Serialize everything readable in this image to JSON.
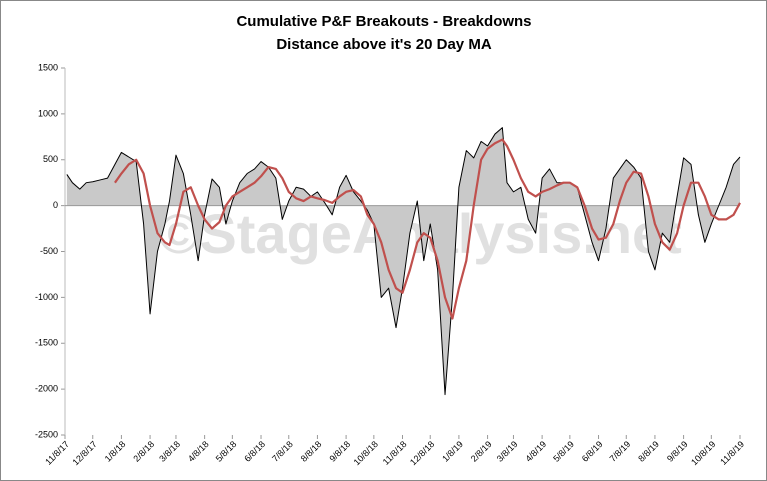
{
  "chart_data": {
    "type": "line",
    "title": "Cumulative P&F Breakouts - Breakdowns",
    "subtitle": "Distance above it's 20 Day MA",
    "watermark": "©StageAnalysis.net",
    "x": [
      "11/10/17",
      "11/16/17",
      "11/24/17",
      "12/1/17",
      "12/8/17",
      "12/16/17",
      "12/24/17",
      "1/1/18",
      "1/8/18",
      "1/16/18",
      "1/24/18",
      "2/1/18",
      "2/8/18",
      "2/16/18",
      "2/24/18",
      "3/1/18",
      "3/8/18",
      "3/16/18",
      "3/24/18",
      "4/1/18",
      "4/8/18",
      "4/16/18",
      "4/24/18",
      "5/1/18",
      "5/8/18",
      "5/16/18",
      "5/24/18",
      "6/1/18",
      "6/8/18",
      "6/16/18",
      "6/24/18",
      "7/1/18",
      "7/8/18",
      "7/16/18",
      "7/24/18",
      "8/1/18",
      "8/8/18",
      "8/16/18",
      "8/24/18",
      "9/1/18",
      "9/8/18",
      "9/16/18",
      "9/24/18",
      "10/1/18",
      "10/8/18",
      "10/16/18",
      "10/24/18",
      "11/1/18",
      "11/8/18",
      "11/16/18",
      "11/24/18",
      "12/1/18",
      "12/8/18",
      "12/16/18",
      "12/24/18",
      "1/1/19",
      "1/8/19",
      "1/16/19",
      "1/24/19",
      "2/1/19",
      "2/8/19",
      "2/16/19",
      "2/24/19",
      "3/1/19",
      "3/8/19",
      "3/16/19",
      "3/24/19",
      "4/1/19",
      "4/8/19",
      "4/16/19",
      "4/24/19",
      "5/1/19",
      "5/8/19",
      "5/16/19",
      "5/24/19",
      "6/1/19",
      "6/8/19",
      "6/16/19",
      "6/24/19",
      "7/1/19",
      "7/8/19",
      "7/16/19",
      "7/24/19",
      "8/1/19",
      "8/8/19",
      "8/16/19",
      "8/24/19",
      "9/1/19",
      "9/8/19",
      "9/16/19",
      "9/24/19",
      "10/1/19",
      "10/8/19",
      "10/16/19",
      "10/24/19",
      "11/1/19",
      "11/8/19"
    ],
    "series": [
      {
        "name": "Breakouts - Breakdowns",
        "color": "#000000",
        "fill": "#c9c9c9",
        "values": [
          340,
          250,
          180,
          250,
          260,
          280,
          300,
          450,
          580,
          530,
          480,
          -200,
          -1180,
          -500,
          -200,
          50,
          550,
          350,
          -100,
          -600,
          -100,
          290,
          200,
          -200,
          50,
          250,
          350,
          400,
          480,
          420,
          300,
          -150,
          50,
          200,
          180,
          100,
          150,
          30,
          -100,
          200,
          330,
          150,
          50,
          -50,
          -200,
          -1000,
          -900,
          -1330,
          -900,
          -300,
          50,
          -600,
          -200,
          -700,
          -2060,
          -1000,
          200,
          600,
          520,
          700,
          650,
          780,
          850,
          250,
          150,
          200,
          -150,
          -300,
          300,
          400,
          250,
          250,
          250,
          200,
          -100,
          -400,
          -600,
          -250,
          300,
          400,
          500,
          420,
          300,
          -500,
          -700,
          -300,
          -400,
          100,
          520,
          450,
          -100,
          -400,
          -200,
          0,
          200,
          450,
          530
        ]
      },
      {
        "name": "20 Day MA",
        "color": "#c0504d",
        "values": [
          null,
          null,
          null,
          null,
          null,
          null,
          null,
          250,
          350,
          450,
          500,
          350,
          0,
          -300,
          -400,
          -430,
          -200,
          150,
          200,
          0,
          -150,
          -250,
          -180,
          0,
          100,
          150,
          200,
          250,
          320,
          420,
          400,
          300,
          150,
          80,
          50,
          100,
          80,
          60,
          30,
          100,
          150,
          170,
          100,
          -100,
          -200,
          -400,
          -700,
          -900,
          -950,
          -700,
          -400,
          -300,
          -350,
          -600,
          -1000,
          -1230,
          -900,
          -600,
          0,
          500,
          620,
          680,
          720,
          650,
          500,
          300,
          150,
          100,
          150,
          180,
          220,
          250,
          250,
          200,
          0,
          -250,
          -370,
          -350,
          -200,
          50,
          250,
          370,
          350,
          100,
          -200,
          -400,
          -480,
          -300,
          0,
          250,
          250,
          100,
          -100,
          -150,
          -150,
          -100,
          30
        ]
      }
    ],
    "xlim": [
      "11/8/17",
      "11/8/19"
    ],
    "xticks": [
      "11/8/17",
      "12/8/17",
      "1/8/18",
      "2/8/18",
      "3/8/18",
      "4/8/18",
      "5/8/18",
      "6/8/18",
      "7/8/18",
      "8/8/18",
      "9/8/18",
      "10/8/18",
      "11/8/18",
      "12/8/18",
      "1/8/19",
      "2/8/19",
      "3/8/19",
      "4/8/19",
      "5/8/19",
      "6/8/19",
      "7/8/19",
      "8/8/19",
      "9/8/19",
      "10/8/19",
      "11/8/19"
    ],
    "ylim": [
      -2500,
      1500
    ],
    "yticks": [
      -2500,
      -2000,
      -1500,
      -1000,
      -500,
      0,
      500,
      1000,
      1500
    ]
  }
}
